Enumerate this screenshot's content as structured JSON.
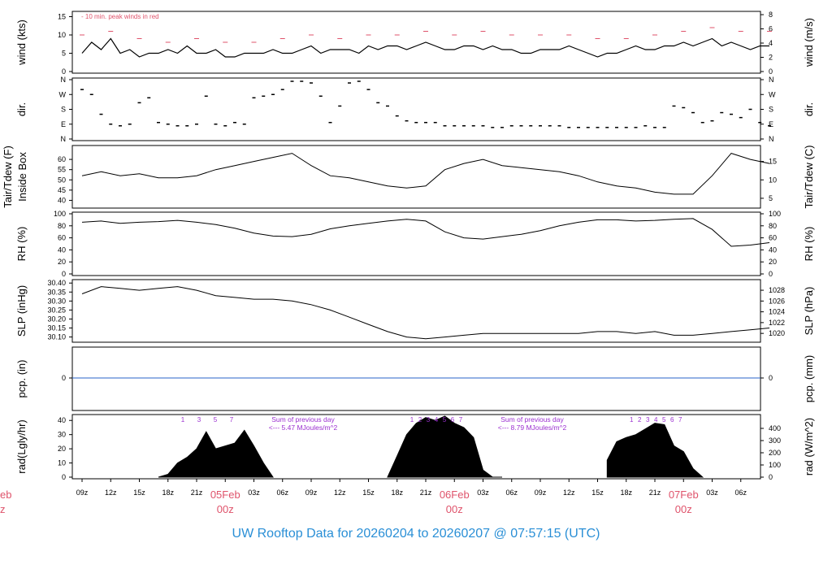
{
  "colors": {
    "frame": "#000000",
    "data": "#000000",
    "gust": "#df536b",
    "precip": "#2a63c8",
    "rad_note": "#9b30d0",
    "date_label": "#df536b",
    "title": "#2a8fd6"
  },
  "title": {
    "prefix": "UW Rooftop Data for",
    "start": "20260204",
    "sep": "to",
    "end": "20260207",
    "at": "@",
    "time": "07:57:15",
    "tz": "(UTC)",
    "full": "UW Rooftop Data for 20260204  to  20260207 @ 07:57:15  (UTC)"
  },
  "chart_data": [
    {
      "type": "line",
      "panel": "wind",
      "ylabel_left": "wind (kts)",
      "ylabel_right": "wind (m/s)",
      "ylim": [
        0,
        16
      ],
      "yticks_left": [
        0,
        5,
        10,
        15
      ],
      "yticks_right": [
        {
          "label": "0",
          "v": 0
        },
        {
          "label": "2",
          "v": 3.89
        },
        {
          "label": "4",
          "v": 7.78
        },
        {
          "label": "6",
          "v": 11.66
        },
        {
          "label": "8",
          "v": 15.55
        }
      ],
      "annotation": "- 10 min. peak winds in red",
      "series": [
        {
          "role": "speed",
          "x": [
            0,
            1,
            2,
            3,
            4,
            5,
            6,
            7,
            8,
            9,
            10,
            11,
            12,
            13,
            14,
            15,
            16,
            17,
            18,
            19,
            20,
            21,
            22,
            23,
            24,
            25,
            26,
            27,
            28,
            29,
            30,
            31,
            32,
            33,
            34,
            35,
            36,
            37,
            38,
            39,
            40,
            41,
            42,
            43,
            44,
            45,
            46,
            47,
            48,
            49,
            50,
            51,
            52,
            53,
            54,
            55,
            56,
            57,
            58,
            59,
            60,
            61,
            62,
            63,
            64,
            65,
            66,
            67,
            68,
            69,
            70,
            71,
            72
          ],
          "y": [
            5,
            8,
            6,
            9,
            5,
            6,
            4,
            5,
            5,
            6,
            5,
            7,
            5,
            5,
            6,
            4,
            4,
            5,
            5,
            5,
            6,
            5,
            5,
            6,
            7,
            5,
            6,
            6,
            6,
            5,
            7,
            6,
            7,
            7,
            6,
            7,
            8,
            7,
            6,
            6,
            7,
            7,
            6,
            7,
            6,
            6,
            5,
            5,
            6,
            6,
            6,
            7,
            6,
            5,
            4,
            5,
            5,
            6,
            7,
            6,
            6,
            7,
            7,
            8,
            7,
            8,
            9,
            7,
            8,
            7,
            6,
            7,
            7
          ]
        },
        {
          "role": "gust",
          "x": [
            0,
            3,
            6,
            9,
            12,
            15,
            18,
            21,
            24,
            27,
            30,
            33,
            36,
            39,
            42,
            45,
            48,
            51,
            54,
            57,
            60,
            63,
            66,
            69,
            72
          ],
          "y": [
            10,
            11,
            9,
            8,
            9,
            8,
            8,
            9,
            10,
            9,
            10,
            10,
            11,
            10,
            11,
            10,
            10,
            10,
            9,
            9,
            10,
            11,
            12,
            11,
            11
          ]
        }
      ]
    },
    {
      "type": "scatter",
      "panel": "dir",
      "ylabel_left": "dir.",
      "ylabel_right": "dir.",
      "ycat": [
        "N",
        "E",
        "S",
        "W",
        "N"
      ],
      "x": [
        0,
        1,
        2,
        3,
        4,
        5,
        6,
        7,
        8,
        9,
        10,
        11,
        12,
        13,
        14,
        15,
        16,
        17,
        18,
        19,
        20,
        21,
        22,
        23,
        24,
        25,
        26,
        27,
        28,
        29,
        30,
        31,
        32,
        33,
        34,
        35,
        36,
        37,
        38,
        39,
        40,
        41,
        42,
        43,
        44,
        45,
        46,
        47,
        48,
        49,
        50,
        51,
        52,
        53,
        54,
        55,
        56,
        57,
        58,
        59,
        60,
        61,
        62,
        63,
        64,
        65,
        66,
        67,
        68,
        69,
        70,
        71,
        72
      ],
      "y": [
        300,
        270,
        150,
        90,
        80,
        90,
        220,
        250,
        100,
        90,
        80,
        80,
        90,
        260,
        90,
        80,
        100,
        90,
        250,
        260,
        270,
        300,
        350,
        350,
        340,
        260,
        100,
        200,
        340,
        350,
        300,
        220,
        200,
        140,
        110,
        100,
        100,
        100,
        80,
        80,
        80,
        80,
        80,
        70,
        70,
        80,
        80,
        80,
        80,
        80,
        80,
        70,
        70,
        70,
        70,
        70,
        70,
        70,
        70,
        80,
        70,
        70,
        200,
        190,
        160,
        100,
        110,
        160,
        150,
        130,
        180,
        100,
        80
      ]
    },
    {
      "type": "line",
      "panel": "temp",
      "ylabel_left": [
        "Tair/Tdew (F)",
        "Inside Box"
      ],
      "ylabel_right": "Tair/Tdew (C)",
      "ylim": [
        37,
        66
      ],
      "yticks_left": [
        40,
        45,
        50,
        55,
        60
      ],
      "yticks_right": [
        {
          "label": "5",
          "v": 41
        },
        {
          "label": "10",
          "v": 50
        },
        {
          "label": "15",
          "v": 59
        }
      ],
      "x": [
        0,
        2,
        4,
        6,
        8,
        10,
        12,
        14,
        16,
        18,
        20,
        22,
        24,
        26,
        28,
        30,
        32,
        34,
        36,
        38,
        40,
        42,
        44,
        46,
        48,
        50,
        52,
        54,
        56,
        58,
        60,
        62,
        64,
        66,
        68,
        70,
        72
      ],
      "y": [
        52,
        54,
        52,
        53,
        51,
        51,
        52,
        55,
        57,
        59,
        61,
        63,
        57,
        52,
        51,
        49,
        47,
        46,
        47,
        55,
        58,
        60,
        57,
        56,
        55,
        54,
        52,
        49,
        47,
        46,
        44,
        43,
        43,
        52,
        63,
        60,
        58
      ]
    },
    {
      "type": "line",
      "panel": "rh",
      "ylabel_left": "RH (%)",
      "ylabel_right": "RH (%)",
      "ylim": [
        0,
        100
      ],
      "yticks": [
        0,
        20,
        40,
        60,
        80,
        100
      ],
      "x": [
        0,
        2,
        4,
        6,
        8,
        10,
        12,
        14,
        16,
        18,
        20,
        22,
        24,
        26,
        28,
        30,
        32,
        34,
        36,
        38,
        40,
        42,
        44,
        46,
        48,
        50,
        52,
        54,
        56,
        58,
        60,
        62,
        64,
        66,
        68,
        70,
        72
      ],
      "y": [
        86,
        88,
        84,
        86,
        87,
        89,
        86,
        82,
        76,
        68,
        63,
        62,
        66,
        75,
        80,
        84,
        88,
        91,
        88,
        70,
        60,
        58,
        62,
        66,
        72,
        80,
        86,
        90,
        90,
        88,
        89,
        91,
        92,
        74,
        46,
        48,
        52
      ]
    },
    {
      "type": "line",
      "panel": "slp",
      "ylabel_left": "SLP (inHg)",
      "ylabel_right": "SLP (hPa)",
      "ylim": [
        30.08,
        30.41
      ],
      "yticks_left": [
        30.1,
        30.15,
        30.2,
        30.25,
        30.3,
        30.35,
        30.4
      ],
      "yticks_right": [
        {
          "label": "1020",
          "v": 30.12
        },
        {
          "label": "1022",
          "v": 30.18
        },
        {
          "label": "1024",
          "v": 30.24
        },
        {
          "label": "1026",
          "v": 30.3
        },
        {
          "label": "1028",
          "v": 30.36
        }
      ],
      "x": [
        0,
        2,
        4,
        6,
        8,
        10,
        12,
        14,
        16,
        18,
        20,
        22,
        24,
        26,
        28,
        30,
        32,
        34,
        36,
        38,
        40,
        42,
        44,
        46,
        48,
        50,
        52,
        54,
        56,
        58,
        60,
        62,
        64,
        66,
        68,
        70,
        72
      ],
      "y": [
        30.34,
        30.38,
        30.37,
        30.36,
        30.37,
        30.38,
        30.36,
        30.33,
        30.32,
        30.31,
        30.31,
        30.3,
        30.28,
        30.25,
        30.21,
        30.17,
        30.13,
        30.1,
        30.09,
        30.1,
        30.11,
        30.12,
        30.12,
        30.12,
        30.12,
        30.12,
        30.12,
        30.13,
        30.13,
        30.12,
        30.13,
        30.11,
        30.11,
        30.12,
        30.13,
        30.14,
        30.15
      ]
    },
    {
      "type": "line",
      "panel": "pcp",
      "ylabel_left": "pcp. (in)",
      "ylabel_right": "pcp. (mm)",
      "yticks_left": [
        "0"
      ],
      "yticks_right": [
        "0"
      ],
      "x": [
        0,
        72
      ],
      "y": [
        0,
        0
      ]
    },
    {
      "type": "area",
      "panel": "rad",
      "ylabel_left": "rad(Lgly/hr)",
      "ylabel_right": "rad (W/m^2)",
      "ylim": [
        0,
        43
      ],
      "yticks_left": [
        0,
        10,
        20,
        30,
        40
      ],
      "yticks_right": [
        {
          "label": "0",
          "v": 0
        },
        {
          "label": "100",
          "v": 8.6
        },
        {
          "label": "200",
          "v": 17.2
        },
        {
          "label": "300",
          "v": 25.8
        },
        {
          "label": "400",
          "v": 34.4
        }
      ],
      "hour_marks": [
        "1",
        "2",
        "3",
        "4",
        "5",
        "6",
        "7"
      ],
      "notes": [
        {
          "line1": "Sum of previous day",
          "line2": "<--- 5.47 MJoules/m^2",
          "x": 24
        },
        {
          "line1": "Sum of previous day",
          "line2": "<--- 8.79 MJoules/m^2",
          "x": 48
        }
      ],
      "x": [
        8,
        9,
        10,
        11,
        12,
        13,
        14,
        15,
        16,
        17,
        18,
        19,
        20,
        32,
        33,
        34,
        35,
        36,
        37,
        38,
        39,
        40,
        41,
        42,
        43,
        44,
        55,
        56,
        57,
        58,
        59,
        60,
        61,
        62,
        63,
        64,
        65
      ],
      "y": [
        0,
        2,
        10,
        14,
        20,
        32,
        20,
        22,
        24,
        33,
        22,
        10,
        0,
        0,
        15,
        30,
        38,
        42,
        40,
        43,
        38,
        35,
        28,
        5,
        0,
        0,
        12,
        25,
        28,
        30,
        34,
        38,
        37,
        22,
        18,
        6,
        0
      ]
    }
  ],
  "x_axis": {
    "hours": [
      "09z",
      "12z",
      "15z",
      "18z",
      "21z",
      "03z",
      "06z",
      "09z",
      "12z",
      "15z",
      "18z",
      "21z",
      "03z",
      "06z",
      "09z",
      "12z",
      "15z",
      "18z",
      "21z",
      "03z",
      "06z"
    ],
    "hour_x": [
      0,
      3,
      6,
      9,
      12,
      18,
      21,
      24,
      27,
      30,
      33,
      36,
      42,
      45,
      48,
      51,
      54,
      57,
      60,
      66,
      69
    ],
    "dates": [
      {
        "date": "05Feb",
        "hour": "00z",
        "x": 15
      },
      {
        "date": "06Feb",
        "hour": "00z",
        "x": 39
      },
      {
        "date": "07Feb",
        "hour": "00z",
        "x": 63
      }
    ],
    "edge_date": "eb",
    "edge_hour": "z"
  }
}
